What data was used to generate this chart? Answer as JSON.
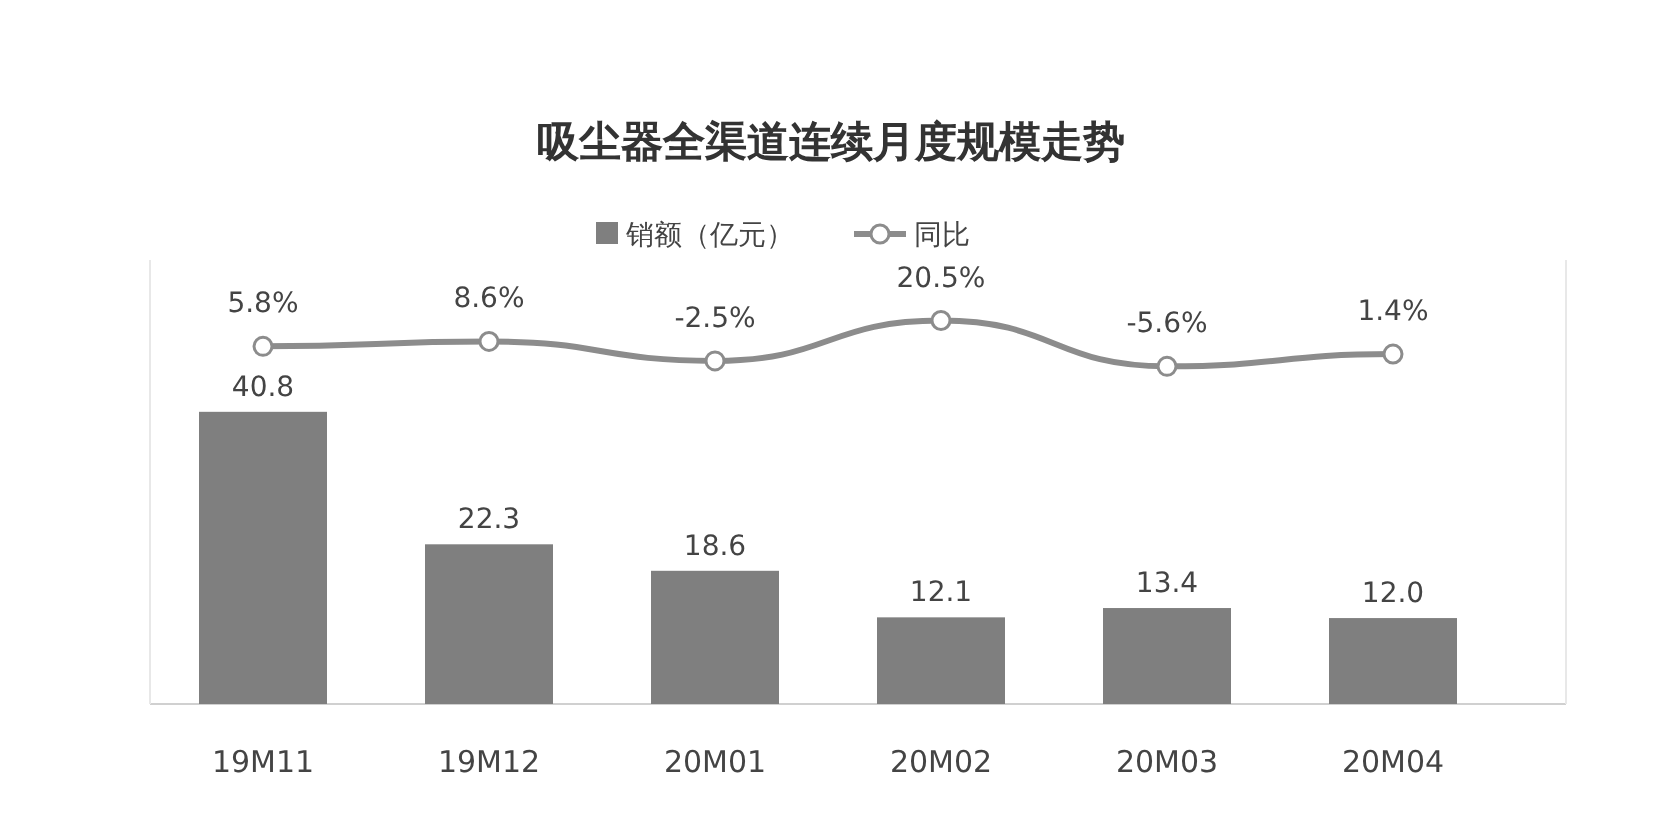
{
  "chart_data": {
    "type": "bar",
    "title": "吸尘器全渠道连续月度规模走势",
    "categories": [
      "19M11",
      "19M12",
      "20M01",
      "20M02",
      "20M03",
      "20M04"
    ],
    "ylim": [
      0,
      62
    ],
    "y2lim": [
      -198,
      55
    ],
    "tick_labels": "x",
    "legend": "top",
    "series": [
      {
        "name": "销额（亿元）",
        "color": "#7f7f7f",
        "values": [
          40.8,
          22.3,
          18.6,
          12.1,
          13.4,
          12.0
        ],
        "value_labels": [
          "40.8",
          "22.3",
          "18.6",
          "12.1",
          "13.4",
          "12.0"
        ]
      },
      {
        "name": "同比",
        "type": "line",
        "axis": "y2",
        "color": "#8c8c8c",
        "marker": "circle",
        "values": [
          5.8,
          8.6,
          -2.5,
          20.5,
          -5.6,
          1.4
        ],
        "value_labels": [
          "5.8%",
          "8.6%",
          "-2.5%",
          "20.5%",
          "-5.6%",
          "1.4%"
        ]
      }
    ]
  }
}
